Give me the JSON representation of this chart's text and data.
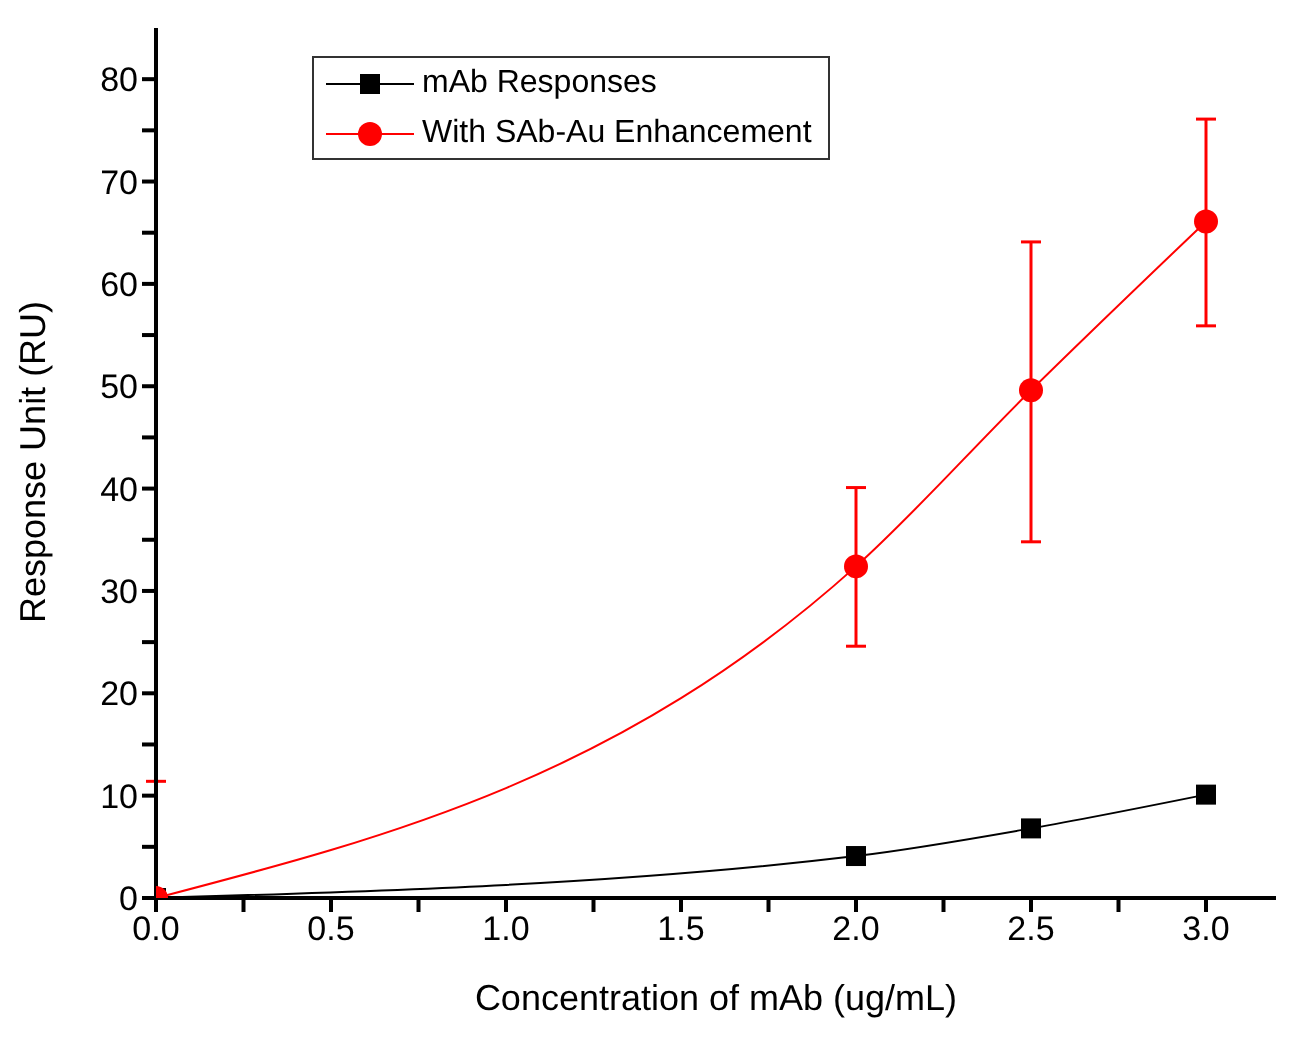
{
  "chart_data": {
    "type": "line",
    "xlabel": "Concentration of mAb (ug/mL)",
    "ylabel": "Response Unit (RU)",
    "xlim": [
      0,
      3.2
    ],
    "ylim": [
      0,
      85
    ],
    "xticks": [
      {
        "value": 0,
        "label": "0.0"
      },
      {
        "value": 0.25,
        "label": null
      },
      {
        "value": 0.5,
        "label": "0.5"
      },
      {
        "value": 0.75,
        "label": null
      },
      {
        "value": 1,
        "label": "1.0"
      },
      {
        "value": 1.25,
        "label": null
      },
      {
        "value": 1.5,
        "label": "1.5"
      },
      {
        "value": 1.75,
        "label": null
      },
      {
        "value": 2,
        "label": "2.0"
      },
      {
        "value": 2.25,
        "label": null
      },
      {
        "value": 2.5,
        "label": "2.5"
      },
      {
        "value": 2.75,
        "label": null
      },
      {
        "value": 3,
        "label": "3.0"
      }
    ],
    "yticks": [
      0,
      {
        "value": 5,
        "label": null
      },
      10,
      {
        "value": 15,
        "label": null
      },
      20,
      {
        "value": 25,
        "label": null
      },
      30,
      {
        "value": 35,
        "label": null
      },
      40,
      {
        "value": 45,
        "label": null
      },
      50,
      {
        "value": 55,
        "label": null
      },
      60,
      {
        "value": 65,
        "label": null
      },
      70,
      {
        "value": 75,
        "label": null
      },
      80
    ],
    "x": [
      0,
      2,
      2.5,
      3
    ],
    "grid": false,
    "legend": "top",
    "line_style": "solid",
    "series": [
      {
        "name": "mAb Responses",
        "color": "#000000",
        "marker": "square",
        "values": [
          0,
          4.1,
          6.8,
          10.1
        ]
      },
      {
        "name": "With SAb-Au Enhancement",
        "color": "#ff0000",
        "marker": "circle",
        "values": [
          0,
          32.4,
          49.6,
          66.1
        ],
        "errors": [
          [
            0,
            11.4
          ],
          [
            24.6,
            40.1
          ],
          [
            34.8,
            64.1
          ],
          [
            55.9,
            76.1
          ]
        ]
      }
    ]
  }
}
